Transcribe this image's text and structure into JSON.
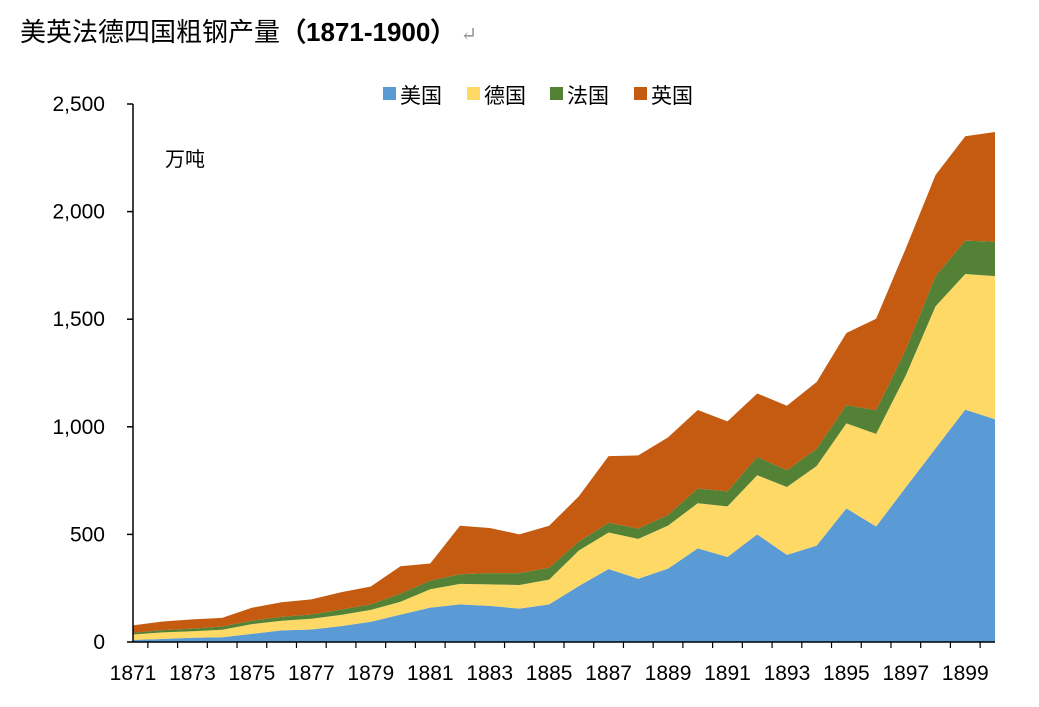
{
  "title": {
    "main": "美英法德四国粗钢产量",
    "years": "（1871-1900）",
    "return_mark": "↵"
  },
  "chart_data": {
    "type": "area",
    "stacked": true,
    "title": "美英法德四国粗钢产量（1871-1900）",
    "unit_label": "万吨",
    "xlabel": "",
    "ylabel": "万吨",
    "x": [
      1871,
      1872,
      1873,
      1874,
      1875,
      1876,
      1877,
      1878,
      1879,
      1880,
      1881,
      1882,
      1883,
      1884,
      1885,
      1886,
      1887,
      1888,
      1889,
      1890,
      1891,
      1892,
      1893,
      1894,
      1895,
      1896,
      1897,
      1898,
      1899,
      1900
    ],
    "x_tick_labels": [
      "1871",
      "1873",
      "1875",
      "1877",
      "1879",
      "1881",
      "1883",
      "1885",
      "1887",
      "1889",
      "1891",
      "1893",
      "1895",
      "1897",
      "1899"
    ],
    "ylim": [
      0,
      2500
    ],
    "y_ticks": [
      0,
      500,
      1000,
      1500,
      2000,
      2500
    ],
    "y_tick_labels": [
      "0",
      "500",
      "1,000",
      "1,500",
      "2,000",
      "2,500"
    ],
    "legend_position": "top",
    "series": [
      {
        "name": "美国",
        "color": "#5B9BD5",
        "values": [
          10,
          14,
          20,
          22,
          38,
          54,
          58,
          74,
          94,
          127,
          160,
          175,
          168,
          155,
          175,
          260,
          339,
          294,
          341,
          435,
          395,
          500,
          405,
          448,
          621,
          537,
          719,
          900,
          1080,
          1035
        ]
      },
      {
        "name": "德国",
        "color": "#FFD966",
        "values": [
          25,
          31,
          30,
          35,
          45,
          45,
          50,
          52,
          55,
          60,
          85,
          95,
          100,
          110,
          115,
          165,
          170,
          185,
          200,
          210,
          235,
          275,
          315,
          370,
          395,
          430,
          520,
          660,
          630,
          665
        ]
      },
      {
        "name": "法国",
        "color": "#538135",
        "values": [
          8,
          10,
          12,
          15,
          16,
          18,
          20,
          25,
          26,
          38,
          40,
          45,
          52,
          55,
          55,
          42,
          45,
          48,
          50,
          68,
          70,
          85,
          78,
          80,
          85,
          110,
          120,
          140,
          155,
          160
        ]
      },
      {
        "name": "英国",
        "color": "#C55A11",
        "values": [
          34,
          40,
          43,
          40,
          60,
          68,
          70,
          80,
          83,
          127,
          80,
          225,
          210,
          180,
          195,
          210,
          310,
          340,
          360,
          365,
          325,
          295,
          300,
          310,
          335,
          425,
          470,
          470,
          485,
          510
        ]
      }
    ]
  }
}
